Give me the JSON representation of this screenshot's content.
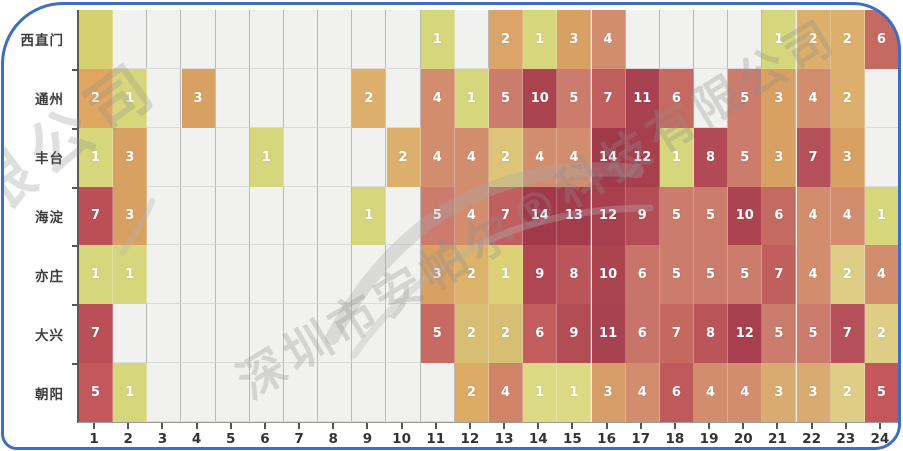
{
  "chart_data": {
    "type": "heatmap",
    "title": "",
    "xlabel": "",
    "ylabel": "",
    "x_labels": [
      "1",
      "2",
      "3",
      "4",
      "5",
      "6",
      "7",
      "8",
      "9",
      "10",
      "11",
      "12",
      "13",
      "14",
      "15",
      "16",
      "17",
      "18",
      "19",
      "20",
      "21",
      "22",
      "23",
      "24"
    ],
    "y_labels": [
      "西直门",
      "通州",
      "丰台",
      "海淀",
      "亦庄",
      "大兴",
      "朝阳"
    ],
    "legend": "none",
    "grid": true,
    "rows": [
      {
        "label": "西直门",
        "cells": [
          {
            "c": 1,
            "v": "",
            "color": "#d6d06e"
          },
          {
            "c": 11,
            "v": "1"
          },
          {
            "c": 13,
            "v": "2",
            "color": "#dba569"
          },
          {
            "c": 14,
            "v": "1"
          },
          {
            "c": 15,
            "v": "3"
          },
          {
            "c": 16,
            "v": "4"
          },
          {
            "c": 21,
            "v": "1"
          },
          {
            "c": 22,
            "v": "2"
          },
          {
            "c": 23,
            "v": "2"
          },
          {
            "c": 24,
            "v": "6"
          }
        ]
      },
      {
        "label": "通州",
        "cells": [
          {
            "c": 1,
            "v": "2",
            "color": "#dfa75f"
          },
          {
            "c": 2,
            "v": "1"
          },
          {
            "c": 4,
            "v": "3"
          },
          {
            "c": 9,
            "v": "2"
          },
          {
            "c": 11,
            "v": "4"
          },
          {
            "c": 12,
            "v": "1"
          },
          {
            "c": 13,
            "v": "5"
          },
          {
            "c": 14,
            "v": "10"
          },
          {
            "c": 15,
            "v": "5"
          },
          {
            "c": 16,
            "v": "7"
          },
          {
            "c": 17,
            "v": "11"
          },
          {
            "c": 18,
            "v": "6"
          },
          {
            "c": 20,
            "v": "5"
          },
          {
            "c": 21,
            "v": "3"
          },
          {
            "c": 22,
            "v": "4"
          },
          {
            "c": 23,
            "v": "2"
          }
        ]
      },
      {
        "label": "丰台",
        "cells": [
          {
            "c": 1,
            "v": "1"
          },
          {
            "c": 2,
            "v": "3"
          },
          {
            "c": 6,
            "v": "1"
          },
          {
            "c": 10,
            "v": "2"
          },
          {
            "c": 11,
            "v": "4"
          },
          {
            "c": 12,
            "v": "4"
          },
          {
            "c": 13,
            "v": "2",
            "color": "#dcc578"
          },
          {
            "c": 14,
            "v": "4"
          },
          {
            "c": 15,
            "v": "4"
          },
          {
            "c": 16,
            "v": "14"
          },
          {
            "c": 17,
            "v": "12"
          },
          {
            "c": 18,
            "v": "1"
          },
          {
            "c": 19,
            "v": "8",
            "color": "#b24a55"
          },
          {
            "c": 20,
            "v": "5"
          },
          {
            "c": 21,
            "v": "3"
          },
          {
            "c": 22,
            "v": "7",
            "color": "#b5505a"
          },
          {
            "c": 23,
            "v": "3"
          }
        ]
      },
      {
        "label": "海淀",
        "cells": [
          {
            "c": 1,
            "v": "7",
            "color": "#bc4e58"
          },
          {
            "c": 2,
            "v": "3"
          },
          {
            "c": 9,
            "v": "1"
          },
          {
            "c": 11,
            "v": "5"
          },
          {
            "c": 12,
            "v": "4"
          },
          {
            "c": 13,
            "v": "7"
          },
          {
            "c": 14,
            "v": "14"
          },
          {
            "c": 15,
            "v": "13"
          },
          {
            "c": 16,
            "v": "12"
          },
          {
            "c": 17,
            "v": "9"
          },
          {
            "c": 18,
            "v": "5"
          },
          {
            "c": 19,
            "v": "5"
          },
          {
            "c": 20,
            "v": "10"
          },
          {
            "c": 21,
            "v": "6"
          },
          {
            "c": 22,
            "v": "4"
          },
          {
            "c": 23,
            "v": "4"
          },
          {
            "c": 24,
            "v": "1"
          }
        ]
      },
      {
        "label": "亦庄",
        "cells": [
          {
            "c": 1,
            "v": "1"
          },
          {
            "c": 2,
            "v": "1"
          },
          {
            "c": 11,
            "v": "3"
          },
          {
            "c": 12,
            "v": "2",
            "color": "#ddb26a"
          },
          {
            "c": 13,
            "v": "1",
            "color": "#ddd177"
          },
          {
            "c": 14,
            "v": "9",
            "color": "#b04752"
          },
          {
            "c": 15,
            "v": "8"
          },
          {
            "c": 16,
            "v": "10"
          },
          {
            "c": 17,
            "v": "6",
            "color": "#c87468"
          },
          {
            "c": 18,
            "v": "5"
          },
          {
            "c": 19,
            "v": "5"
          },
          {
            "c": 20,
            "v": "5"
          },
          {
            "c": 21,
            "v": "7"
          },
          {
            "c": 22,
            "v": "4"
          },
          {
            "c": 23,
            "v": "2",
            "color": "#ddcd85"
          },
          {
            "c": 24,
            "v": "4"
          }
        ]
      },
      {
        "label": "大兴",
        "cells": [
          {
            "c": 1,
            "v": "7",
            "color": "#bc4e58"
          },
          {
            "c": 11,
            "v": "5",
            "color": "#c66a62"
          },
          {
            "c": 12,
            "v": "2",
            "color": "#d8bd74"
          },
          {
            "c": 13,
            "v": "2",
            "color": "#d8bd74"
          },
          {
            "c": 14,
            "v": "6",
            "color": "#c25f5e"
          },
          {
            "c": 15,
            "v": "9"
          },
          {
            "c": 16,
            "v": "11"
          },
          {
            "c": 17,
            "v": "6",
            "color": "#c87468"
          },
          {
            "c": 18,
            "v": "7",
            "color": "#c5685f"
          },
          {
            "c": 19,
            "v": "8"
          },
          {
            "c": 20,
            "v": "12"
          },
          {
            "c": 21,
            "v": "5"
          },
          {
            "c": 22,
            "v": "5"
          },
          {
            "c": 23,
            "v": "7",
            "color": "#b5505a"
          },
          {
            "c": 24,
            "v": "2",
            "color": "#ddcd85"
          }
        ]
      },
      {
        "label": "朝阳",
        "cells": [
          {
            "c": 1,
            "v": "5",
            "color": "#c4575c"
          },
          {
            "c": 2,
            "v": "1"
          },
          {
            "c": 12,
            "v": "2",
            "color": "#dcab66"
          },
          {
            "c": 13,
            "v": "4",
            "color": "#d08468"
          },
          {
            "c": 14,
            "v": "1",
            "color": "#dcda85"
          },
          {
            "c": 15,
            "v": "1",
            "color": "#dcda85"
          },
          {
            "c": 16,
            "v": "3",
            "color": "#d79d68"
          },
          {
            "c": 17,
            "v": "4"
          },
          {
            "c": 18,
            "v": "6",
            "color": "#bf5a5c"
          },
          {
            "c": 19,
            "v": "4"
          },
          {
            "c": 20,
            "v": "4"
          },
          {
            "c": 21,
            "v": "3",
            "color": "#d8ab70"
          },
          {
            "c": 22,
            "v": "3",
            "color": "#d8ab70"
          },
          {
            "c": 23,
            "v": "2",
            "color": "#ddcd85"
          },
          {
            "c": 24,
            "v": "5",
            "color": "#c4575c"
          }
        ]
      }
    ],
    "palette": {
      "1": "#d6d67c",
      "2": "#dcb06c",
      "3": "#d8a062",
      "4": "#d28d6e",
      "5": "#cb7c6c",
      "6": "#c46a62",
      "7": "#c05f5e",
      "8": "#ba565a",
      "9": "#b34d55",
      "10": "#ac4450",
      "11": "#a84150",
      "12": "#a73f4f",
      "13": "#a43c4d",
      "14": "#a1394b"
    },
    "empty_cell_color": "#f1f1ef",
    "value_range": [
      1,
      14
    ]
  },
  "watermark": {
    "line_main": "深圳市安帕尔®科技有限公司",
    "line_corner": "限公司",
    "color": "#8f8f8f"
  },
  "frame": {
    "color": "#3e6ec1"
  }
}
